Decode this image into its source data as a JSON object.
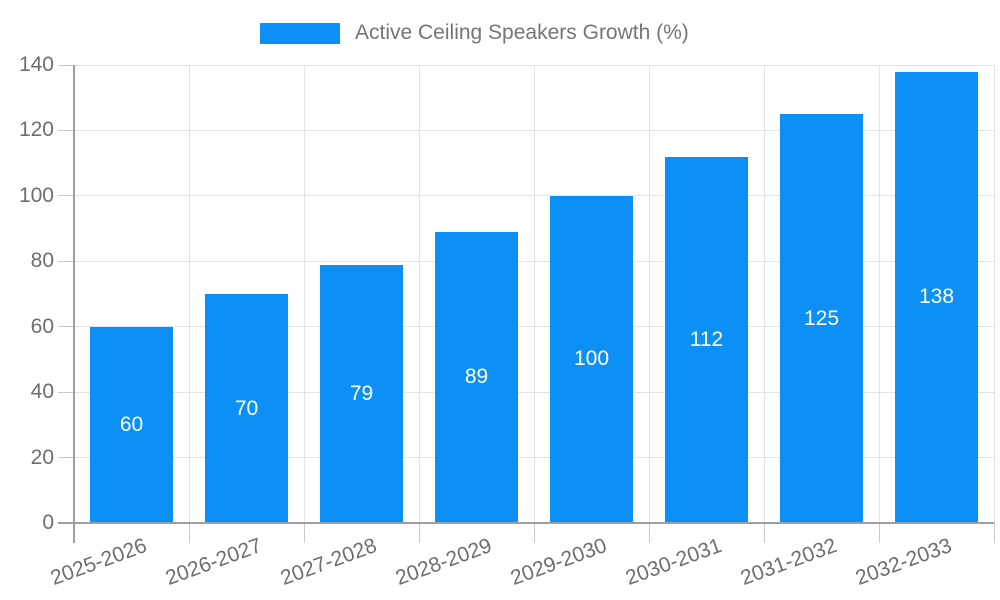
{
  "chart_data": {
    "type": "bar",
    "title": "",
    "legend": {
      "label": "Active Ceiling Speakers Growth (%)",
      "position": "top-center"
    },
    "categories": [
      "2025-2026",
      "2026-2027",
      "2027-2028",
      "2028-2029",
      "2029-2030",
      "2030-2031",
      "2031-2032",
      "2032-2033"
    ],
    "values": [
      60,
      70,
      79,
      89,
      100,
      112,
      125,
      138
    ],
    "value_labels_inside_bars": true,
    "xlabel": "",
    "ylabel": "",
    "ylim": [
      0,
      140
    ],
    "yticks": [
      0,
      20,
      40,
      60,
      80,
      100,
      120,
      140
    ],
    "grid": true,
    "x_tick_label_rotation_deg": -20
  },
  "colors": {
    "bar": "#0d90f5",
    "axis_line": "#9e9e9e",
    "gridline": "#e3e3e3",
    "tick": "#c9c9c9",
    "axis_text": "#6e6e6e",
    "legend_text": "#757575",
    "value_label_text": "#ffffff",
    "background": "#ffffff"
  }
}
